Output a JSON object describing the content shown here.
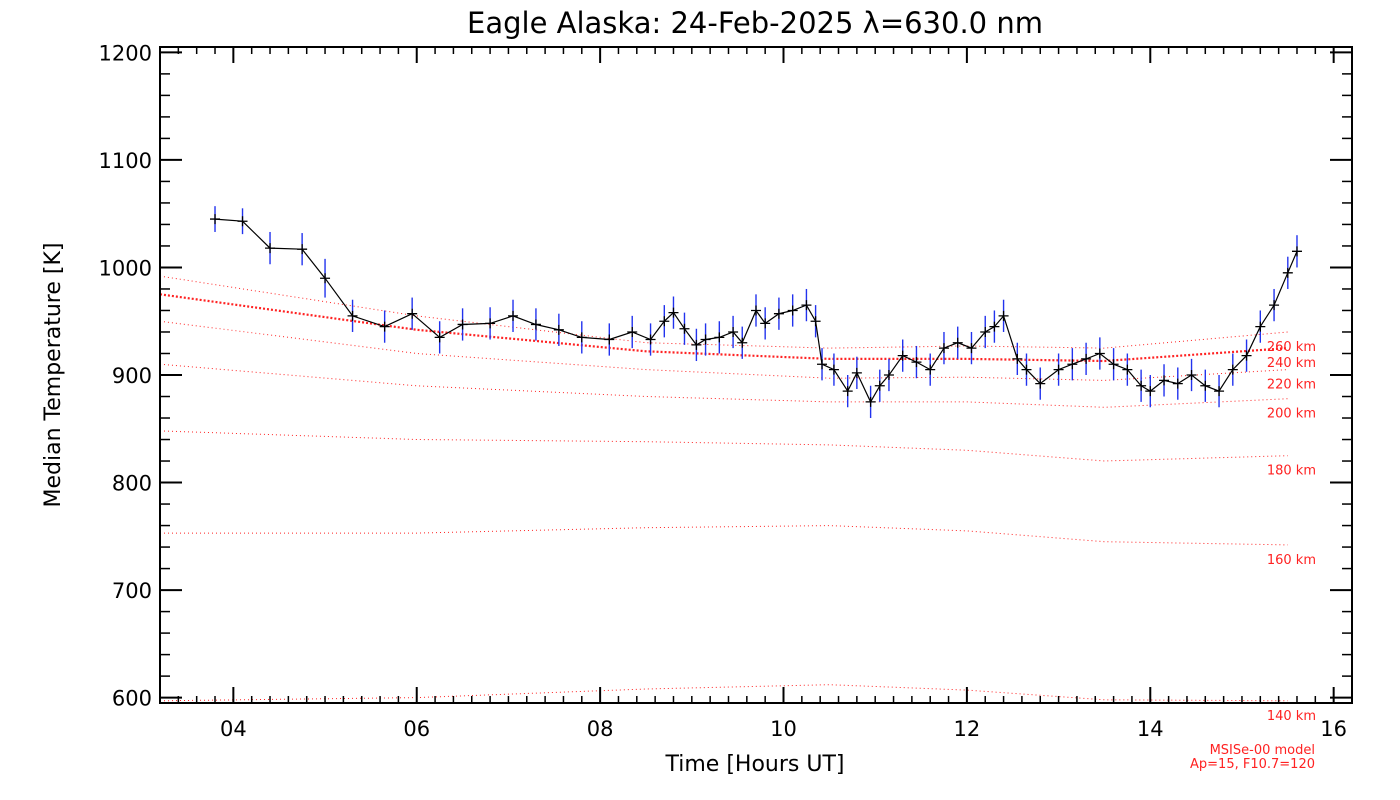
{
  "chart_data": {
    "type": "line",
    "title": "Eagle Alaska: 24-Feb-2025 λ=630.0 nm",
    "xlabel": "Time [Hours UT]",
    "ylabel": "Median Temperature [K]",
    "xlim": [
      3.2,
      16.2
    ],
    "ylim": [
      595,
      1205
    ],
    "xticks": [
      4,
      6,
      8,
      10,
      12,
      14,
      16
    ],
    "xtick_labels": [
      "04",
      "06",
      "08",
      "10",
      "12",
      "14",
      "16"
    ],
    "yticks": [
      600,
      700,
      800,
      900,
      1000,
      1100,
      1200
    ],
    "ytick_labels": [
      "600",
      "700",
      "800",
      "900",
      "1000",
      "1100",
      "1200"
    ],
    "grid": false,
    "colors": {
      "observed_line": "#000000",
      "error_bars": "#2233ee",
      "model": "#ff2222"
    },
    "series": [
      {
        "kind": "observed",
        "x": [
          3.8,
          4.1,
          4.4,
          4.75,
          5.0,
          5.3,
          5.65,
          5.95,
          6.25,
          6.5,
          6.8,
          7.05,
          7.3,
          7.55,
          7.8,
          8.1,
          8.35,
          8.55,
          8.7,
          8.8,
          8.92,
          9.05,
          9.15,
          9.3,
          9.45,
          9.55,
          9.7,
          9.8,
          9.95,
          10.1,
          10.25,
          10.35,
          10.42,
          10.55,
          10.7,
          10.8,
          10.95,
          11.05,
          11.15,
          11.3,
          11.45,
          11.6,
          11.75,
          11.9,
          12.05,
          12.2,
          12.3,
          12.4,
          12.55,
          12.65,
          12.8,
          13.0,
          13.15,
          13.3,
          13.45,
          13.6,
          13.75,
          13.9,
          14.0,
          14.15,
          14.3,
          14.45,
          14.6,
          14.75,
          14.9,
          15.05,
          15.2,
          15.35,
          15.5,
          15.6
        ],
        "y": [
          1045,
          1043,
          1018,
          1017,
          990,
          955,
          945,
          957,
          935,
          947,
          948,
          955,
          947,
          942,
          935,
          933,
          940,
          933,
          950,
          958,
          943,
          928,
          933,
          935,
          940,
          930,
          960,
          948,
          957,
          960,
          965,
          950,
          910,
          905,
          885,
          902,
          875,
          890,
          900,
          918,
          912,
          905,
          925,
          930,
          925,
          940,
          945,
          955,
          915,
          905,
          892,
          905,
          910,
          915,
          920,
          910,
          905,
          890,
          885,
          895,
          892,
          900,
          890,
          885,
          905,
          918,
          945,
          965,
          995,
          1015
        ],
        "err": [
          12,
          12,
          15,
          15,
          18,
          15,
          15,
          15,
          15,
          15,
          15,
          15,
          15,
          15,
          15,
          15,
          15,
          15,
          15,
          15,
          15,
          15,
          15,
          15,
          15,
          15,
          15,
          15,
          15,
          15,
          15,
          15,
          15,
          15,
          15,
          15,
          15,
          15,
          15,
          15,
          15,
          15,
          15,
          15,
          15,
          15,
          15,
          15,
          15,
          15,
          15,
          15,
          15,
          15,
          15,
          15,
          15,
          15,
          15,
          15,
          15,
          15,
          15,
          15,
          15,
          15,
          15,
          15,
          15,
          15
        ]
      },
      {
        "kind": "model",
        "name": "260 km",
        "x": [
          3.2,
          6.0,
          8.5,
          10.5,
          12.0,
          13.5,
          15.5
        ],
        "y": [
          992,
          955,
          930,
          925,
          927,
          925,
          940
        ]
      },
      {
        "kind": "model",
        "name": "240 km",
        "x": [
          3.2,
          6.0,
          8.5,
          10.5,
          12.0,
          13.5,
          15.5
        ],
        "y": [
          975,
          942,
          922,
          915,
          915,
          913,
          925
        ]
      },
      {
        "kind": "model",
        "name": "220 km",
        "x": [
          3.2,
          6.0,
          8.5,
          10.5,
          12.0,
          13.5,
          15.5
        ],
        "y": [
          950,
          920,
          905,
          897,
          898,
          895,
          905
        ]
      },
      {
        "kind": "model",
        "name": "200 km",
        "x": [
          3.2,
          6.0,
          8.5,
          10.5,
          12.0,
          13.5,
          15.5
        ],
        "y": [
          910,
          890,
          880,
          875,
          875,
          870,
          878
        ]
      },
      {
        "kind": "model",
        "name": "180 km",
        "x": [
          3.2,
          6.0,
          8.5,
          10.5,
          12.0,
          13.5,
          15.5
        ],
        "y": [
          848,
          840,
          838,
          835,
          830,
          820,
          825
        ]
      },
      {
        "kind": "model",
        "name": "160 km",
        "x": [
          3.2,
          6.0,
          8.5,
          10.5,
          12.0,
          13.5,
          15.5
        ],
        "y": [
          753,
          753,
          758,
          760,
          755,
          745,
          742
        ]
      },
      {
        "kind": "model",
        "name": "140 km",
        "x": [
          3.2,
          6.0,
          8.5,
          10.5,
          12.0,
          13.5,
          15.5
        ],
        "y": [
          597,
          600,
          608,
          612,
          607,
          598,
          597
        ]
      }
    ],
    "annotations": [
      "MSISe-00 model",
      "Ap=15, F10.7=120"
    ]
  }
}
